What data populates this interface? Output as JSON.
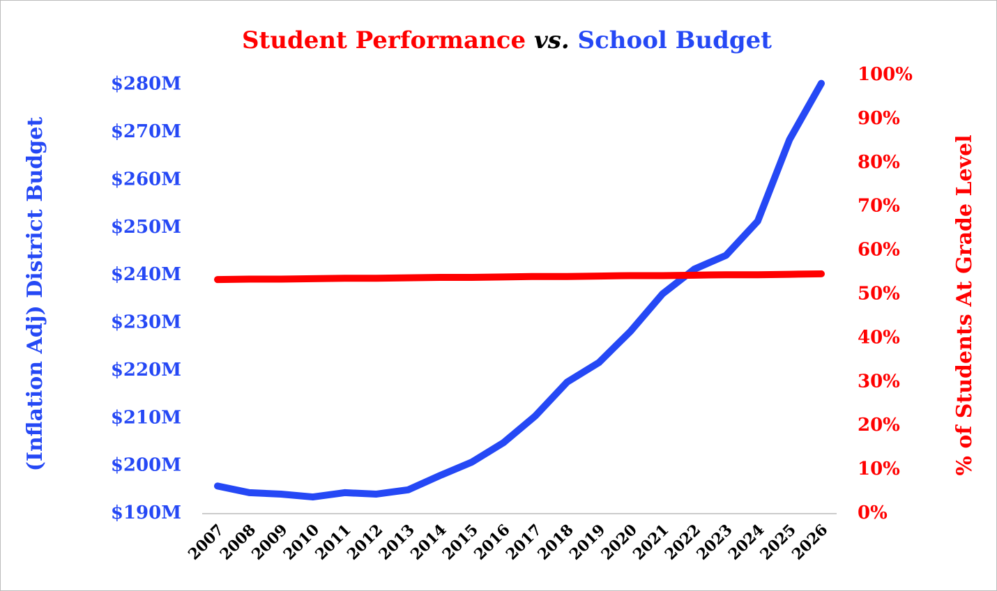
{
  "chart_data": {
    "type": "line",
    "title_parts": [
      "Student Performance",
      "vs.",
      "School Budget"
    ],
    "title_colors": [
      "#ff0000",
      "#000000",
      "#2548f5"
    ],
    "y_label": "(Inflation Adj) District Budget",
    "y2_label": "% of Students  At Grade Level",
    "categories": [
      "2007",
      "2008",
      "2009",
      "2010",
      "2011",
      "2012",
      "2013",
      "2014",
      "2015",
      "2016",
      "2017",
      "2018",
      "2019",
      "2020",
      "2021",
      "2022",
      "2023",
      "2024",
      "2025",
      "2026"
    ],
    "series": [
      {
        "name": "School Budget",
        "color": "#2548f5",
        "axis": "y",
        "values": [
          195.8,
          194.4,
          194.1,
          193.5,
          194.4,
          194.1,
          195.0,
          198.0,
          200.8,
          204.9,
          210.5,
          217.6,
          221.7,
          228.3,
          236.1,
          241.3,
          244.2,
          251.4,
          268.5,
          280.3
        ]
      },
      {
        "name": "Student Performance",
        "color": "#ff0000",
        "axis": "y2",
        "values": [
          53.4,
          53.5,
          53.5,
          53.6,
          53.7,
          53.7,
          53.8,
          53.9,
          53.9,
          54.0,
          54.1,
          54.1,
          54.2,
          54.3,
          54.3,
          54.4,
          54.5,
          54.5,
          54.6,
          54.7
        ]
      }
    ],
    "ylim": [
      190,
      282
    ],
    "yticks": [
      {
        "value": 190,
        "label": "$190M"
      },
      {
        "value": 200,
        "label": "$200M"
      },
      {
        "value": 210,
        "label": "$210M"
      },
      {
        "value": 220,
        "label": "$220M"
      },
      {
        "value": 230,
        "label": "$230M"
      },
      {
        "value": 240,
        "label": "$240M"
      },
      {
        "value": 250,
        "label": "$250M"
      },
      {
        "value": 260,
        "label": "$260M"
      },
      {
        "value": 270,
        "label": "$270M"
      },
      {
        "value": 280,
        "label": "$280M"
      }
    ],
    "y2lim": [
      0,
      100
    ],
    "y2ticks": [
      {
        "value": 0,
        "label": "0%"
      },
      {
        "value": 10,
        "label": "10%"
      },
      {
        "value": 20,
        "label": "20%"
      },
      {
        "value": 30,
        "label": "30%"
      },
      {
        "value": 40,
        "label": "40%"
      },
      {
        "value": 50,
        "label": "50%"
      },
      {
        "value": 60,
        "label": "60%"
      },
      {
        "value": 70,
        "label": "70%"
      },
      {
        "value": 80,
        "label": "80%"
      },
      {
        "value": 90,
        "label": "90%"
      },
      {
        "value": 100,
        "label": "100%"
      }
    ],
    "grid": false
  }
}
